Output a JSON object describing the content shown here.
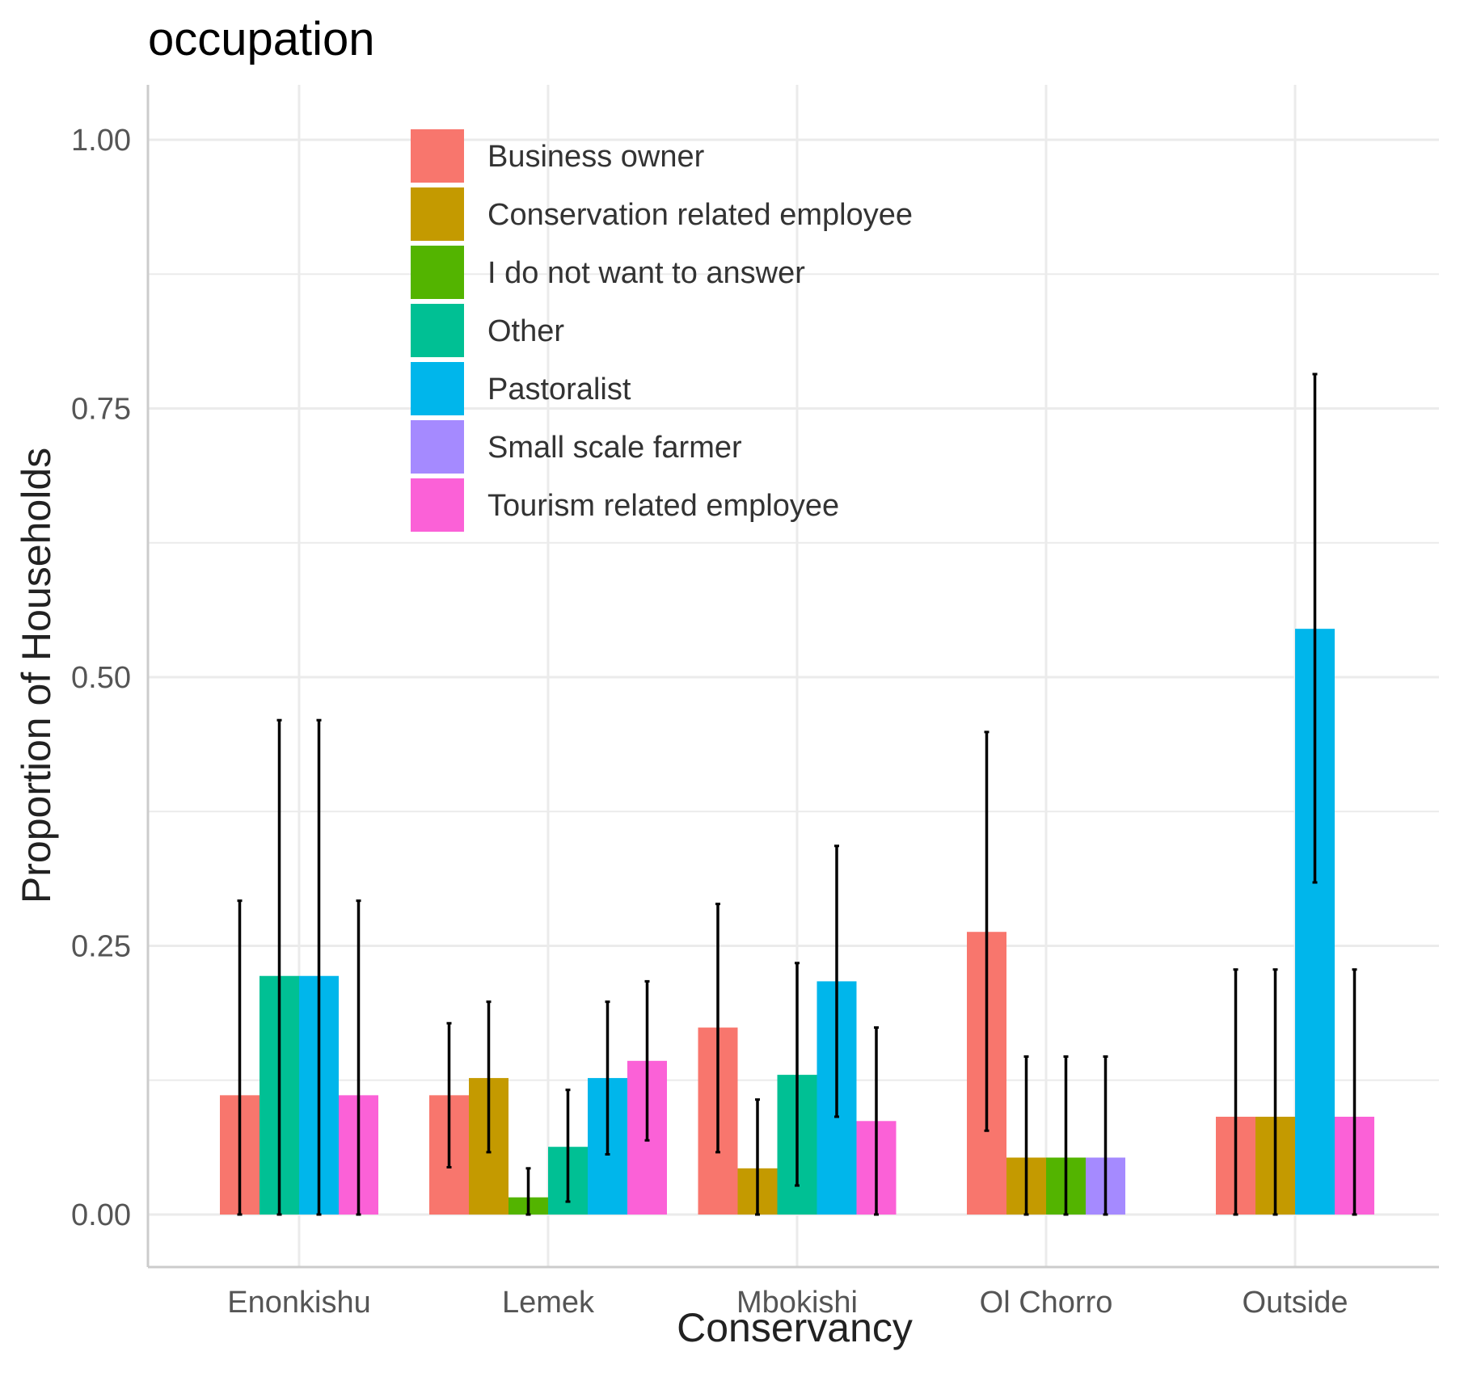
{
  "chart_data": {
    "type": "bar",
    "title": "occupation",
    "xlabel": "Conservancy",
    "ylabel": "Proportion of Households",
    "ylim": [
      -0.05,
      1.05
    ],
    "yticks": [
      0.0,
      0.25,
      0.5,
      0.75,
      1.0
    ],
    "ytick_labels": [
      "0.00",
      "0.25",
      "0.50",
      "0.75",
      "1.00"
    ],
    "grid": true,
    "legend_position": "top-center-left, inside plot",
    "categories": [
      "Enonkishu",
      "Lemek",
      "Mbokishi",
      "Ol Chorro",
      "Outside"
    ],
    "series": [
      {
        "name": "Business owner",
        "color": "#F8766D",
        "values": [
          0.111,
          0.111,
          0.174,
          0.263,
          0.091
        ],
        "error_low": [
          0.0,
          0.044,
          0.058,
          0.078,
          0.0
        ],
        "error_high": [
          0.292,
          0.178,
          0.289,
          0.449,
          0.228
        ]
      },
      {
        "name": "Conservation related employee",
        "color": "#C49A00",
        "values": [
          null,
          0.127,
          0.043,
          0.053,
          0.091
        ],
        "error_low": [
          null,
          0.058,
          0.0,
          0.0,
          0.0
        ],
        "error_high": [
          null,
          0.198,
          0.107,
          0.147,
          0.228
        ]
      },
      {
        "name": "I do not want to answer",
        "color": "#53B400",
        "values": [
          null,
          0.016,
          null,
          0.053,
          null
        ],
        "error_low": [
          null,
          0.0,
          null,
          0.0,
          null
        ],
        "error_high": [
          null,
          0.043,
          null,
          0.147,
          null
        ]
      },
      {
        "name": "Other",
        "color": "#00C094",
        "values": [
          0.222,
          0.063,
          0.13,
          null,
          null
        ],
        "error_low": [
          0.0,
          0.012,
          0.027,
          null,
          null
        ],
        "error_high": [
          0.46,
          0.116,
          0.234,
          null,
          null
        ]
      },
      {
        "name": "Pastoralist",
        "color": "#00B6EB",
        "values": [
          0.222,
          0.127,
          0.217,
          null,
          0.545
        ],
        "error_low": [
          0.0,
          0.056,
          0.091,
          null,
          0.309
        ],
        "error_high": [
          0.46,
          0.198,
          0.343,
          null,
          0.782
        ]
      },
      {
        "name": "Small scale farmer",
        "color": "#A58AFF",
        "values": [
          null,
          null,
          null,
          0.053,
          null
        ],
        "error_low": [
          null,
          null,
          null,
          0.0,
          null
        ],
        "error_high": [
          null,
          null,
          null,
          0.147,
          null
        ]
      },
      {
        "name": "Tourism related employee",
        "color": "#FB61D7",
        "values": [
          0.111,
          0.143,
          0.087,
          null,
          0.091
        ],
        "error_low": [
          0.0,
          0.069,
          0.0,
          null,
          0.0
        ],
        "error_high": [
          0.292,
          0.217,
          0.174,
          null,
          0.228
        ]
      }
    ]
  }
}
